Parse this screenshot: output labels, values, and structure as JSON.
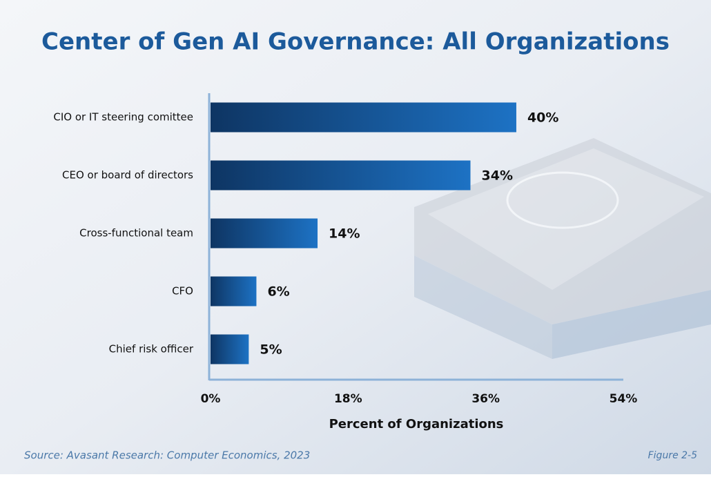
{
  "chart_data": {
    "type": "hbar",
    "title": "Center of Gen AI Governance: All Organizations",
    "categories": [
      "CIO or IT steering comittee",
      "CEO or board of directors",
      "Cross-functional team",
      "CFO",
      "Chief risk officer"
    ],
    "values": [
      40,
      34,
      14,
      6,
      5
    ],
    "value_labels": [
      "40%",
      "34%",
      "14%",
      "6%",
      "5%"
    ],
    "color": "#1b6fc0",
    "xlim": [
      0,
      54
    ],
    "xticks": [
      {
        "value": 0,
        "label": "0%"
      },
      {
        "value": 18,
        "label": "18%"
      },
      {
        "value": 36,
        "label": "36%"
      },
      {
        "value": 54,
        "label": "54%"
      }
    ],
    "xlabel": "Percent of Organizations",
    "source": "Source: Avasant Research: Computer Economics, 2023",
    "figure": "Figure 2-5"
  }
}
